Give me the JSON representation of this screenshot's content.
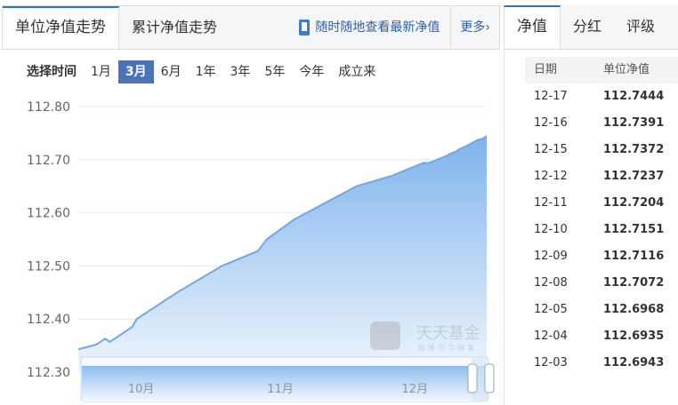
{
  "tabs": {
    "items": [
      "单位净值走势",
      "累计净值走势"
    ],
    "app_link": "随时随地查看最新净值",
    "more": "更多›"
  },
  "right_tabs": [
    "净值",
    "分红",
    "评级"
  ],
  "range": {
    "label": "选择时间",
    "options": [
      "1月",
      "3月",
      "6月",
      "1年",
      "3年",
      "5年",
      "今年",
      "成立来"
    ],
    "selected": "3月"
  },
  "table": {
    "headers": [
      "日期",
      "单位净值"
    ],
    "rows": [
      [
        "12-17",
        "112.7444"
      ],
      [
        "12-16",
        "112.7391"
      ],
      [
        "12-15",
        "112.7372"
      ],
      [
        "12-12",
        "112.7237"
      ],
      [
        "12-11",
        "112.7204"
      ],
      [
        "12-10",
        "112.7151"
      ],
      [
        "12-09",
        "112.7116"
      ],
      [
        "12-08",
        "112.7072"
      ],
      [
        "12-05",
        "112.6968"
      ],
      [
        "12-04",
        "112.6935"
      ],
      [
        "12-03",
        "112.6943"
      ]
    ]
  },
  "watermark": {
    "brand": "天天基金",
    "slogan": "链接您与财富"
  },
  "chart_data": {
    "type": "area",
    "yticks": [
      "112.80",
      "112.70",
      "112.60",
      "112.50",
      "112.40",
      "112.30"
    ],
    "ylim": [
      112.3,
      112.8
    ],
    "xticks": [
      "10月",
      "11月",
      "12月"
    ],
    "grid": true,
    "color": "#6fa8e8",
    "x": [
      "09-17",
      "09-21",
      "09-23",
      "09-24",
      "09-26",
      "09-29",
      "09-30",
      "10-09",
      "10-19",
      "10-27",
      "10-29",
      "11-04",
      "11-18",
      "11-26",
      "12-03",
      "12-04",
      "12-05",
      "12-08",
      "12-09",
      "12-10",
      "12-11",
      "12-12",
      "12-15",
      "12-16",
      "12-17"
    ],
    "values": [
      112.343,
      112.352,
      112.363,
      112.357,
      112.368,
      112.385,
      112.4,
      112.45,
      112.5,
      112.528,
      112.55,
      112.587,
      112.65,
      112.67,
      112.6943,
      112.6935,
      112.6968,
      112.7072,
      112.7116,
      112.7151,
      112.7204,
      112.7237,
      112.7372,
      112.7391,
      112.7444
    ]
  }
}
